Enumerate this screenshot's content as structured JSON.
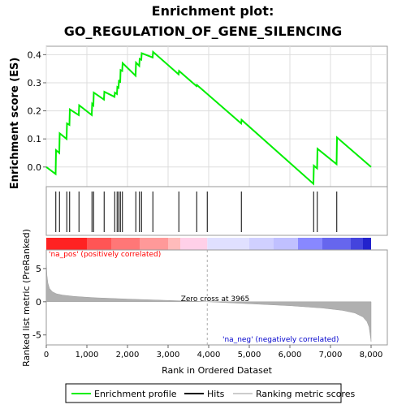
{
  "title_line1": "Enrichment plot:",
  "title_line2": "GO_REGULATION_OF_GENE_SILENCING",
  "top_ylabel": "Enrichment score (ES)",
  "bottom_ylabel": "Ranked list metric (PreRanked)",
  "xlabel": "Rank in Ordered Dataset",
  "pos_label": "'na_pos' (positively correlated)",
  "neg_label": "'na_neg' (negatively correlated)",
  "zero_cross_label": "Zero cross at 3965",
  "legend": {
    "enrichment_profile": "Enrichment profile",
    "hits": "Hits",
    "ranking_metric": "Ranking metric scores"
  },
  "colors": {
    "enrichment_line": "#00ee00",
    "hits": "#000000",
    "metric_fill": "#b0b0b0",
    "pos_label": "#ff0000",
    "neg_label": "#0000cc"
  },
  "chart_data": [
    {
      "type": "line",
      "name": "Enrichment profile",
      "xlim": [
        0,
        8400
      ],
      "ylim": [
        -0.07,
        0.43
      ],
      "x_ticks": [
        0,
        1000,
        2000,
        3000,
        4000,
        5000,
        6000,
        7000,
        8000
      ],
      "x_tick_labels": [
        "0",
        "1,000",
        "2,000",
        "3,000",
        "4,000",
        "5,000",
        "6,000",
        "7,000",
        "8,000"
      ],
      "y_ticks": [
        0.0,
        0.1,
        0.2,
        0.3,
        0.4
      ],
      "y_tick_labels": [
        "0.0",
        "0.1",
        "0.2",
        "0.3",
        "0.4"
      ],
      "x": [
        0,
        230,
        240,
        320,
        330,
        500,
        510,
        570,
        580,
        800,
        810,
        1120,
        1130,
        1160,
        1170,
        1420,
        1430,
        1680,
        1690,
        1740,
        1750,
        1780,
        1790,
        1820,
        1830,
        1870,
        1880,
        2200,
        2210,
        2290,
        2300,
        2340,
        2350,
        2620,
        2630,
        3260,
        3270,
        3700,
        3710,
        4800,
        4810,
        6580,
        6590,
        6670,
        6680,
        7150,
        7160,
        8000
      ],
      "y": [
        0.0,
        -0.025,
        0.06,
        0.05,
        0.12,
        0.1,
        0.155,
        0.15,
        0.205,
        0.185,
        0.22,
        0.185,
        0.225,
        0.22,
        0.265,
        0.24,
        0.268,
        0.25,
        0.265,
        0.26,
        0.285,
        0.282,
        0.31,
        0.3,
        0.345,
        0.342,
        0.37,
        0.325,
        0.372,
        0.36,
        0.385,
        0.382,
        0.405,
        0.39,
        0.41,
        0.33,
        0.342,
        0.288,
        0.292,
        0.155,
        0.168,
        -0.06,
        0.005,
        -0.005,
        0.065,
        0.01,
        0.105,
        0.0
      ]
    },
    {
      "type": "hits",
      "name": "Hits",
      "xlim": [
        0,
        8400
      ],
      "positions": [
        235,
        325,
        505,
        575,
        805,
        1125,
        1165,
        1425,
        1685,
        1745,
        1785,
        1825,
        1875,
        2205,
        2295,
        2345,
        2625,
        3265,
        3705,
        3965,
        4805,
        6585,
        6675,
        7155
      ]
    },
    {
      "type": "area",
      "name": "Ranking metric scores",
      "xlim": [
        0,
        8400
      ],
      "ylim": [
        -6.5,
        7.8
      ],
      "y_ticks": [
        -5,
        0,
        5
      ],
      "y_tick_labels": [
        "-5",
        "0",
        "5"
      ],
      "zero_cross": 3965,
      "x": [
        0,
        15,
        40,
        80,
        150,
        250,
        400,
        700,
        1200,
        2000,
        3000,
        3965,
        5000,
        6000,
        6800,
        7300,
        7600,
        7800,
        7900,
        7950,
        7990,
        8000
      ],
      "y": [
        6.5,
        4.0,
        2.8,
        2.0,
        1.5,
        1.2,
        1.0,
        0.8,
        0.6,
        0.4,
        0.2,
        0.0,
        -0.3,
        -0.6,
        -0.95,
        -1.3,
        -1.7,
        -2.3,
        -3.0,
        -3.8,
        -5.5,
        -6.0
      ]
    }
  ]
}
